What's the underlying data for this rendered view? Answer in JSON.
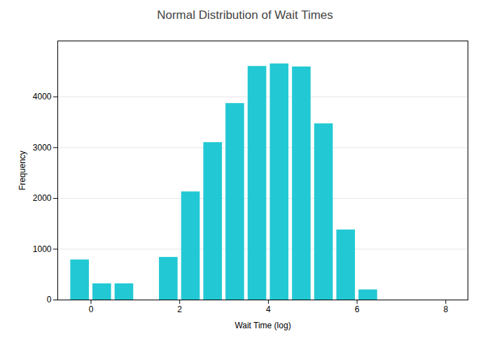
{
  "chart_data": {
    "type": "bar",
    "title": "Normal Distribution of Wait Times",
    "xlabel": "Wait Time (log)",
    "ylabel": "Frequency",
    "x": [
      -0.25,
      0.25,
      0.75,
      1.75,
      2.25,
      2.75,
      3.25,
      3.75,
      4.25,
      4.75,
      5.25,
      5.75,
      6.25
    ],
    "values": [
      790,
      320,
      320,
      840,
      2130,
      3100,
      3870,
      4600,
      4650,
      4590,
      3470,
      1380,
      200
    ],
    "color": "#22c9d4",
    "xlim": [
      -0.75,
      8.5
    ],
    "ylim": [
      0,
      5100
    ],
    "xticks": [
      0,
      2,
      4,
      6,
      8
    ],
    "yticks": [
      0,
      1000,
      2000,
      3000,
      4000
    ],
    "grid": true
  }
}
